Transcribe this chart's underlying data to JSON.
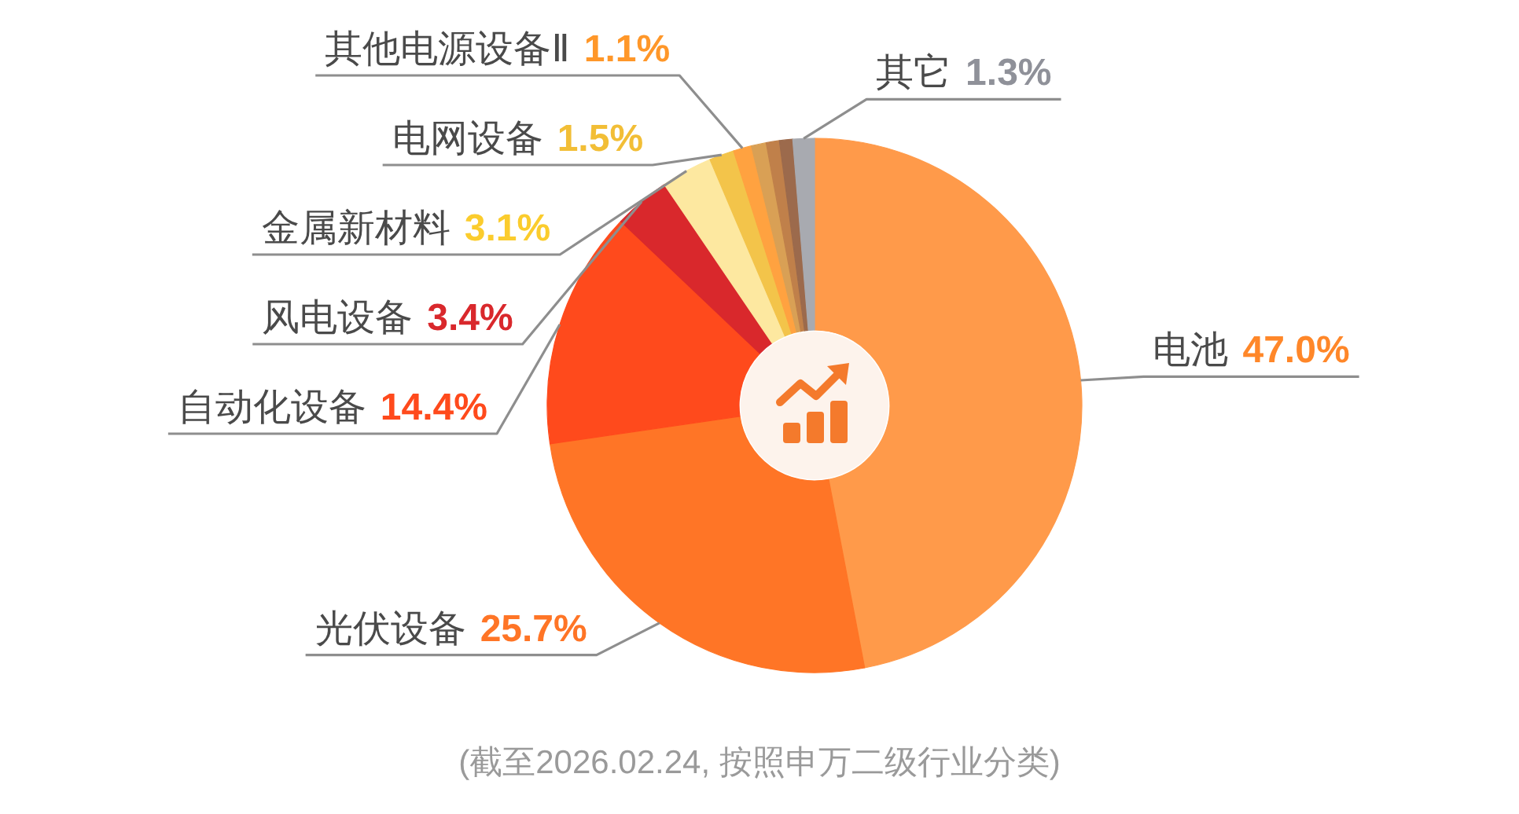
{
  "chart_data": {
    "type": "donut",
    "categories": [
      "电池",
      "光伏设备",
      "自动化设备",
      "风电设备",
      "金属新材料",
      "电网设备",
      "其他电源设备Ⅱ",
      null,
      null,
      null,
      "其它"
    ],
    "values": [
      47.0,
      25.7,
      14.4,
      3.4,
      3.1,
      1.5,
      1.1,
      0.9,
      0.8,
      0.8,
      1.3
    ],
    "value_labels": [
      "47.0%",
      "25.7%",
      "14.4%",
      "3.4%",
      "3.1%",
      "1.5%",
      "1.1%",
      null,
      null,
      null,
      "1.3%"
    ],
    "colors": [
      "#ff9a4a",
      "#ff7526",
      "#ff4a1c",
      "#d9282c",
      "#fde8a0",
      "#f3c44a",
      "#ffa240",
      "#d9a055",
      "#c0804a",
      "#9c6a4c",
      "#a8aab0"
    ],
    "annotations": [
      "(截至2026.02.24, 按照申万二级行业分类)"
    ]
  }
}
